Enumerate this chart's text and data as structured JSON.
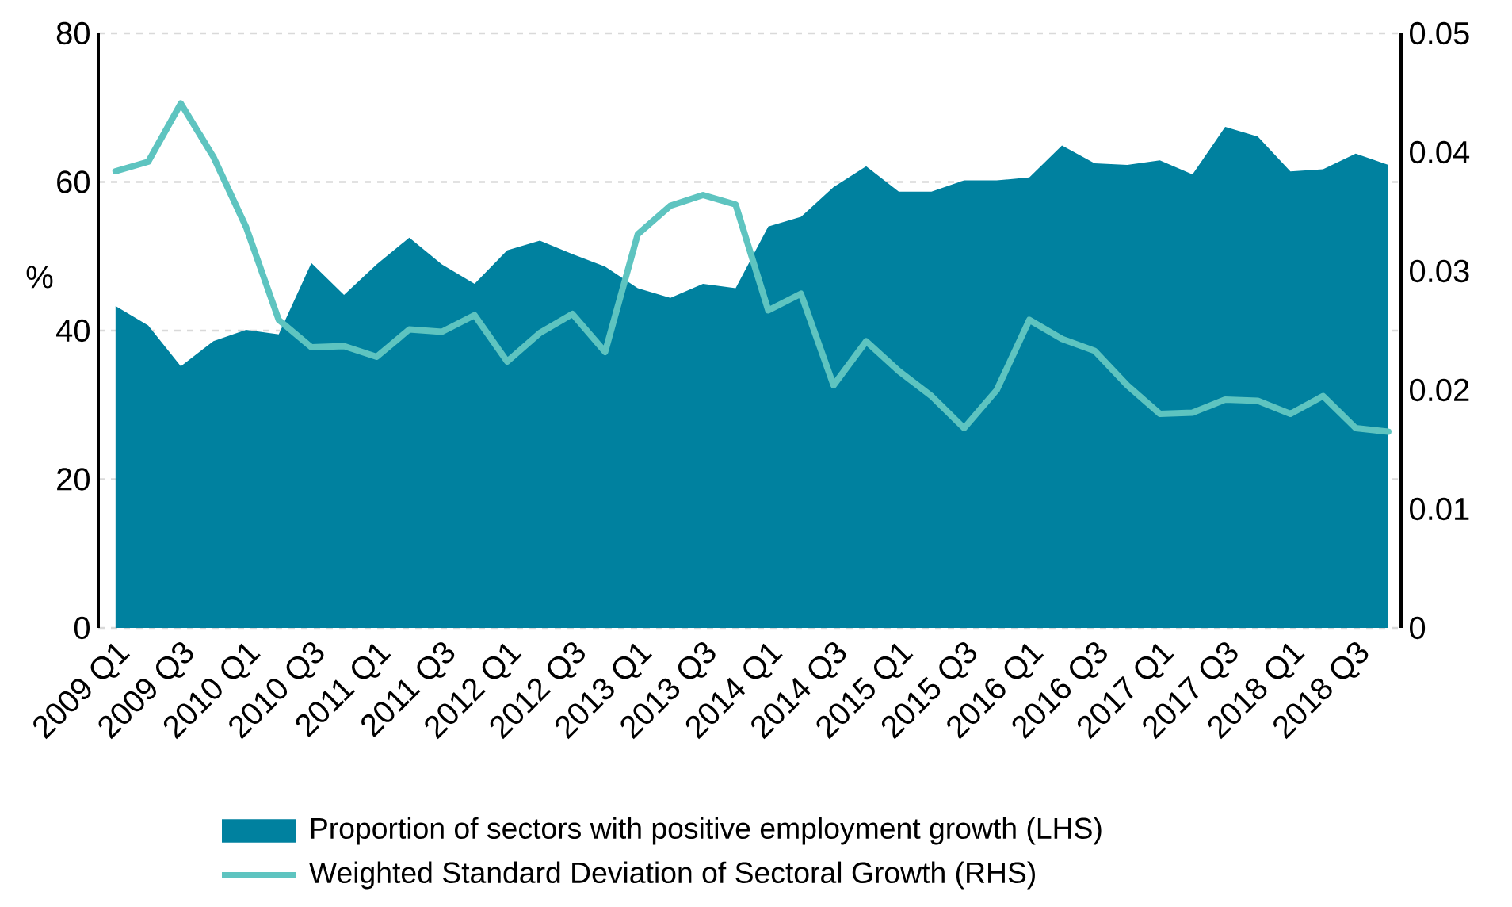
{
  "chart_data": {
    "type": "area",
    "ylabel": "%",
    "grid": "y",
    "legend": "bottom",
    "categories": [
      "2009 Q1",
      null,
      "2009 Q3",
      null,
      "2010 Q1",
      null,
      "2010 Q3",
      null,
      "2011 Q1",
      null,
      "2011 Q3",
      null,
      "2012 Q1",
      null,
      "2012 Q3",
      null,
      "2013 Q1",
      null,
      "2013 Q3",
      null,
      "2014 Q1",
      null,
      "2014 Q3",
      null,
      "2015 Q1",
      null,
      "2015 Q3",
      null,
      "2016 Q1",
      null,
      "2016 Q3",
      null,
      "2017 Q1",
      null,
      "2017 Q3",
      null,
      "2018 Q1",
      null,
      "2018 Q3",
      null
    ],
    "ylim": [
      0,
      80
    ],
    "yticks": [
      0,
      20,
      40,
      60,
      80
    ],
    "y2lim": [
      0,
      0.05
    ],
    "y2ticks": [
      0,
      0.01,
      0.02,
      0.03,
      0.04,
      0.05
    ],
    "series": [
      {
        "name": "Proportion of sectors with positive employment growth (LHS)",
        "color": "#00819f",
        "values": [
          43.3,
          40.7,
          35.2,
          38.6,
          40.1,
          39.5,
          49.1,
          44.8,
          48.9,
          52.5,
          48.9,
          46.3,
          50.8,
          52.1,
          50.3,
          48.6,
          45.7,
          44.4,
          46.3,
          45.7,
          54.0,
          55.3,
          59.3,
          62.1,
          58.7,
          58.7,
          60.2,
          60.2,
          60.6,
          64.9,
          62.5,
          62.3,
          62.9,
          61.0,
          67.4,
          66.1,
          61.4,
          61.7,
          63.8,
          62.3
        ]
      },
      {
        "name": "Weighted Standard Deviation of Sectoral Growth (RHS)",
        "type": "line",
        "axis": "y2",
        "color": "#5ec4c0",
        "values": [
          0.0384,
          0.0392,
          0.0441,
          0.0396,
          0.0337,
          0.0259,
          0.0236,
          0.0237,
          0.0228,
          0.0251,
          0.0249,
          0.0263,
          0.0224,
          0.0248,
          0.0264,
          0.0232,
          0.0331,
          0.0355,
          0.0364,
          0.0356,
          0.0267,
          0.0281,
          0.0204,
          0.0241,
          0.0216,
          0.0195,
          0.0168,
          0.02,
          0.0259,
          0.0243,
          0.0233,
          0.0204,
          0.018,
          0.0181,
          0.0192,
          0.0191,
          0.018,
          0.0195,
          0.0168,
          0.0165
        ]
      }
    ]
  }
}
